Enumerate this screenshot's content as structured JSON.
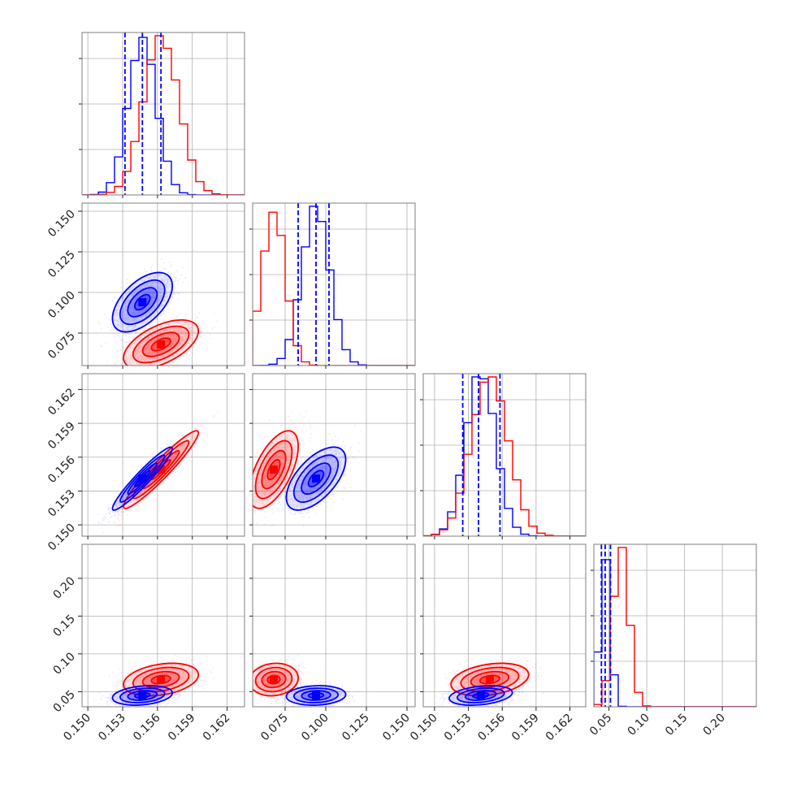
{
  "chart_data": {
    "type": "corner",
    "colors": {
      "series_a": "#0000ff",
      "series_b": "#ff0000",
      "grid": "#b0b0b0",
      "frame": "#7f7f7f"
    },
    "grid": true,
    "parameters": [
      {
        "range": [
          0.1495,
          0.1635
        ],
        "ticks": [
          0.15,
          0.153,
          0.156,
          0.159,
          0.162
        ],
        "tick_labels": [
          "0.150",
          "0.153",
          "0.156",
          "0.159",
          "0.162"
        ]
      },
      {
        "range": [
          0.055,
          0.155
        ],
        "ticks": [
          0.075,
          0.1,
          0.125,
          0.15
        ],
        "tick_labels": [
          "0.075",
          "0.100",
          "0.125",
          "0.150"
        ]
      },
      {
        "range": [
          0.149,
          0.1634
        ],
        "ticks": [
          0.15,
          0.153,
          0.156,
          0.159,
          0.162
        ],
        "tick_labels": [
          "0.150",
          "0.153",
          "0.156",
          "0.159",
          "0.162"
        ]
      },
      {
        "range": [
          0.03,
          0.245
        ],
        "ticks": [
          0.05,
          0.1,
          0.15,
          0.2
        ],
        "tick_labels": [
          "0.05",
          "0.10",
          "0.15",
          "0.20"
        ]
      }
    ],
    "series": [
      {
        "color": "#0000ff",
        "means": [
          0.1547,
          0.094,
          0.1541,
          0.045
        ],
        "sigmas": [
          0.0012,
          0.0085,
          0.0013,
          0.006
        ],
        "quantiles": [
          [
            0.1532,
            0.1547,
            0.1563
          ],
          [
            0.083,
            0.094,
            0.102
          ],
          [
            0.1525,
            0.1539,
            0.1558
          ],
          [
            0.04,
            0.045,
            0.052
          ]
        ]
      },
      {
        "color": "#ff0000",
        "means": [
          0.1563,
          0.068,
          0.1549,
          0.066
        ],
        "sigmas": [
          0.0015,
          0.007,
          0.0016,
          0.01
        ]
      }
    ],
    "correlations": [
      {
        "pair": [
          0,
          1
        ],
        "blue": 0.55,
        "red": 0.55
      },
      {
        "pair": [
          0,
          2
        ],
        "blue": 0.95,
        "red": 0.95
      },
      {
        "pair": [
          1,
          2
        ],
        "blue": 0.6,
        "red": 0.6
      },
      {
        "pair": [
          0,
          3
        ],
        "blue": 0.25,
        "red": 0.3
      },
      {
        "pair": [
          1,
          3
        ],
        "blue": 0.1,
        "red": 0.1
      },
      {
        "pair": [
          2,
          3
        ],
        "blue": 0.3,
        "red": 0.3
      }
    ],
    "quantile_lines": {
      "style": "dashed",
      "color": "#0000ff"
    }
  }
}
